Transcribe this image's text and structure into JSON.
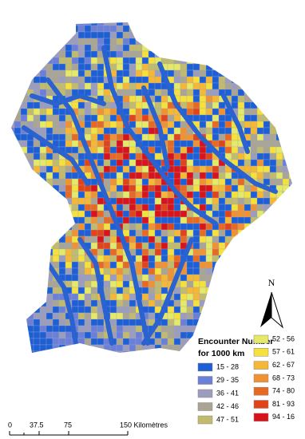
{
  "legend": {
    "title": "Encounter Number",
    "subtitle": "for 1000 km",
    "classes": [
      {
        "label": "15 - 28",
        "color": "#1f5fd6"
      },
      {
        "label": "29 - 35",
        "color": "#6b7fd8"
      },
      {
        "label": "36 - 41",
        "color": "#9c9cbc"
      },
      {
        "label": "42 - 46",
        "color": "#aaa494"
      },
      {
        "label": "47 - 51",
        "color": "#c2bb6e"
      },
      {
        "label": "52 - 56",
        "color": "#e6e868"
      },
      {
        "label": "57 - 61",
        "color": "#f6e03c"
      },
      {
        "label": "62 - 67",
        "color": "#f6b834"
      },
      {
        "label": "68 - 73",
        "color": "#f09232"
      },
      {
        "label": "74 - 80",
        "color": "#e86a22"
      },
      {
        "label": "81 - 93",
        "color": "#e2441a"
      },
      {
        "label": "94 - 16",
        "color": "#d8141a"
      }
    ]
  },
  "scale_bar": {
    "labels": [
      "0",
      "37.5",
      "75",
      "150 Kilomètres"
    ]
  },
  "north_arrow": {
    "label": "N"
  }
}
